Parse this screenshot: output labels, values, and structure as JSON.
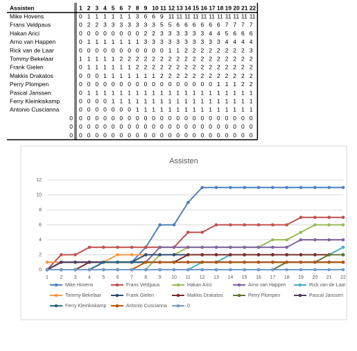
{
  "table": {
    "header": "Assisten",
    "columns": [
      1,
      2,
      3,
      4,
      5,
      6,
      7,
      8,
      9,
      10,
      11,
      12,
      13,
      14,
      15,
      16,
      17,
      18,
      19,
      20,
      21,
      22
    ],
    "rows": [
      {
        "name": "Mike Hovens",
        "values": [
          0,
          1,
          1,
          1,
          1,
          1,
          1,
          3,
          6,
          6,
          9,
          11,
          11,
          11,
          11,
          11,
          11,
          11,
          11,
          11,
          11,
          11
        ]
      },
      {
        "name": "Frans Veldpaus",
        "values": [
          0,
          2,
          2,
          3,
          3,
          3,
          3,
          3,
          3,
          3,
          5,
          5,
          6,
          6,
          6,
          6,
          6,
          6,
          7,
          7,
          7,
          7
        ]
      },
      {
        "name": "Hakan Arici",
        "values": [
          0,
          0,
          0,
          0,
          0,
          0,
          0,
          0,
          2,
          2,
          3,
          3,
          3,
          3,
          3,
          3,
          4,
          4,
          5,
          6,
          6,
          6
        ]
      },
      {
        "name": "Arno van Happen",
        "values": [
          0,
          1,
          1,
          1,
          1,
          1,
          1,
          1,
          3,
          3,
          3,
          3,
          3,
          3,
          3,
          3,
          3,
          3,
          4,
          4,
          4,
          4
        ]
      },
      {
        "name": "Rick van de Laar",
        "values": [
          0,
          0,
          0,
          0,
          0,
          0,
          0,
          0,
          0,
          0,
          0,
          1,
          1,
          2,
          2,
          2,
          2,
          2,
          2,
          2,
          2,
          3
        ]
      },
      {
        "name": "Tommy Bekelaar",
        "values": [
          1,
          1,
          1,
          1,
          1,
          2,
          2,
          2,
          2,
          2,
          2,
          2,
          2,
          2,
          2,
          2,
          2,
          2,
          2,
          2,
          2,
          2
        ]
      },
      {
        "name": "Frank Gielen",
        "values": [
          0,
          1,
          1,
          1,
          1,
          1,
          1,
          2,
          2,
          2,
          2,
          2,
          2,
          2,
          2,
          2,
          2,
          2,
          2,
          2,
          2,
          2
        ]
      },
      {
        "name": "Makkis Drakatos",
        "values": [
          0,
          0,
          0,
          1,
          1,
          1,
          1,
          1,
          1,
          1,
          2,
          2,
          2,
          2,
          2,
          2,
          2,
          2,
          2,
          2,
          2,
          2
        ]
      },
      {
        "name": "Perry Plompen",
        "values": [
          0,
          0,
          0,
          0,
          0,
          0,
          0,
          0,
          0,
          0,
          0,
          0,
          0,
          0,
          0,
          0,
          0,
          1,
          1,
          1,
          2,
          2
        ]
      },
      {
        "name": "Pascal Janssen",
        "values": [
          0,
          1,
          1,
          1,
          1,
          1,
          1,
          1,
          1,
          1,
          1,
          1,
          1,
          1,
          1,
          1,
          1,
          1,
          1,
          1,
          1,
          1
        ]
      },
      {
        "name": "Ferry Kleinkiskamp",
        "values": [
          0,
          0,
          0,
          0,
          1,
          1,
          1,
          1,
          1,
          1,
          1,
          1,
          1,
          1,
          1,
          1,
          1,
          1,
          1,
          1,
          1,
          1
        ]
      },
      {
        "name": "Antonio Cuscianna",
        "values": [
          0,
          0,
          0,
          0,
          0,
          0,
          0,
          1,
          1,
          1,
          1,
          1,
          1,
          1,
          1,
          1,
          1,
          1,
          1,
          1,
          1,
          1
        ]
      },
      {
        "name": 0,
        "values": [
          0,
          0,
          0,
          0,
          0,
          0,
          0,
          0,
          0,
          0,
          0,
          0,
          0,
          0,
          0,
          0,
          0,
          0,
          0,
          0,
          0,
          0
        ]
      },
      {
        "name": 0,
        "values": [
          0,
          0,
          0,
          0,
          0,
          0,
          0,
          0,
          0,
          0,
          0,
          0,
          0,
          0,
          0,
          0,
          0,
          0,
          0,
          0,
          0,
          0
        ]
      },
      {
        "name": 0,
        "values": [
          0,
          0,
          0,
          0,
          0,
          0,
          0,
          0,
          0,
          0,
          0,
          0,
          0,
          0,
          0,
          0,
          0,
          0,
          0,
          0,
          0,
          0
        ]
      }
    ]
  },
  "chart_data": {
    "type": "line",
    "title": "Assisten",
    "categories": [
      1,
      2,
      3,
      4,
      5,
      6,
      7,
      8,
      9,
      10,
      11,
      12,
      13,
      14,
      15,
      16,
      17,
      18,
      19,
      20,
      21,
      22
    ],
    "ylim": [
      0,
      12
    ],
    "yticks": [
      0,
      2,
      4,
      6,
      8,
      10,
      12
    ],
    "grid": true,
    "series": [
      {
        "name": "Mike Hovens",
        "color": "#4f81bd",
        "values": [
          0,
          1,
          1,
          1,
          1,
          1,
          1,
          3,
          6,
          6,
          9,
          11,
          11,
          11,
          11,
          11,
          11,
          11,
          11,
          11,
          11,
          11
        ]
      },
      {
        "name": "Frans Veldpaus",
        "color": "#c0504d",
        "values": [
          0,
          2,
          2,
          3,
          3,
          3,
          3,
          3,
          3,
          3,
          5,
          5,
          6,
          6,
          6,
          6,
          6,
          6,
          7,
          7,
          7,
          7
        ]
      },
      {
        "name": "Hakan Arici",
        "color": "#9bbb59",
        "values": [
          0,
          0,
          0,
          0,
          0,
          0,
          0,
          0,
          2,
          2,
          3,
          3,
          3,
          3,
          3,
          3,
          4,
          4,
          5,
          6,
          6,
          6
        ]
      },
      {
        "name": "Arno van Happen",
        "color": "#8064a2",
        "values": [
          0,
          1,
          1,
          1,
          1,
          1,
          1,
          1,
          3,
          3,
          3,
          3,
          3,
          3,
          3,
          3,
          3,
          3,
          4,
          4,
          4,
          4
        ]
      },
      {
        "name": "Rick van de Laar",
        "color": "#4bacc6",
        "values": [
          0,
          0,
          0,
          0,
          0,
          0,
          0,
          0,
          0,
          0,
          0,
          1,
          1,
          2,
          2,
          2,
          2,
          2,
          2,
          2,
          2,
          3
        ]
      },
      {
        "name": "Tommy Bekelaar",
        "color": "#f79646",
        "values": [
          1,
          1,
          1,
          1,
          1,
          2,
          2,
          2,
          2,
          2,
          2,
          2,
          2,
          2,
          2,
          2,
          2,
          2,
          2,
          2,
          2,
          2
        ]
      },
      {
        "name": "Frank Gielen",
        "color": "#2c4d75",
        "values": [
          0,
          1,
          1,
          1,
          1,
          1,
          1,
          2,
          2,
          2,
          2,
          2,
          2,
          2,
          2,
          2,
          2,
          2,
          2,
          2,
          2,
          2
        ]
      },
      {
        "name": "Makkis Drakatos",
        "color": "#772c2a",
        "values": [
          0,
          0,
          0,
          1,
          1,
          1,
          1,
          1,
          1,
          1,
          2,
          2,
          2,
          2,
          2,
          2,
          2,
          2,
          2,
          2,
          2,
          2
        ]
      },
      {
        "name": "Perry Plompen",
        "color": "#5f7530",
        "values": [
          0,
          0,
          0,
          0,
          0,
          0,
          0,
          0,
          0,
          0,
          0,
          0,
          0,
          0,
          0,
          0,
          0,
          1,
          1,
          1,
          2,
          2
        ]
      },
      {
        "name": "Pascal Janssen",
        "color": "#4d3b62",
        "values": [
          0,
          1,
          1,
          1,
          1,
          1,
          1,
          1,
          1,
          1,
          1,
          1,
          1,
          1,
          1,
          1,
          1,
          1,
          1,
          1,
          1,
          1
        ]
      },
      {
        "name": "Ferry Kleinkiskamp",
        "color": "#276a7c",
        "values": [
          0,
          0,
          0,
          0,
          1,
          1,
          1,
          1,
          1,
          1,
          1,
          1,
          1,
          1,
          1,
          1,
          1,
          1,
          1,
          1,
          1,
          1
        ]
      },
      {
        "name": "Antonio Cuscianna",
        "color": "#b65708",
        "values": [
          0,
          0,
          0,
          0,
          0,
          0,
          0,
          1,
          1,
          1,
          1,
          1,
          1,
          1,
          1,
          1,
          1,
          1,
          1,
          1,
          1,
          1
        ]
      },
      {
        "name": 0,
        "color": "#729aca",
        "values": [
          0,
          0,
          0,
          0,
          0,
          0,
          0,
          0,
          0,
          0,
          0,
          0,
          0,
          0,
          0,
          0,
          0,
          0,
          0,
          0,
          0,
          0
        ]
      }
    ]
  }
}
